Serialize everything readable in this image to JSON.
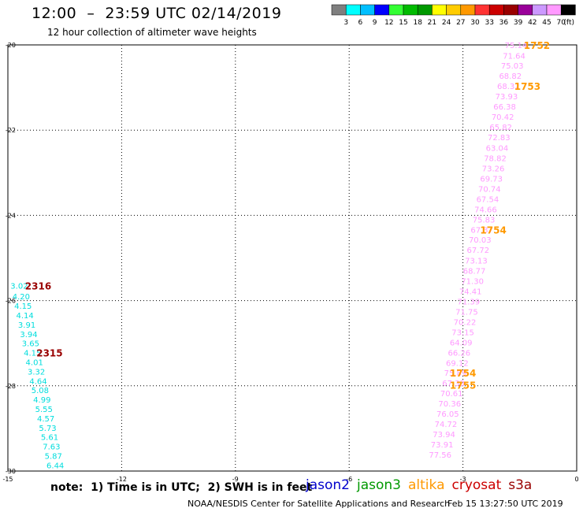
{
  "header": {
    "title": "12:00  –  23:59 UTC 02/14/2019",
    "subtitle": "12 hour collection of altimeter wave heights"
  },
  "color_scale": {
    "colors": [
      "#7f7f7f",
      "#00ffff",
      "#00bfff",
      "#0000ff",
      "#33ff33",
      "#00bb00",
      "#009900",
      "#ffff00",
      "#ffcc00",
      "#ff9900",
      "#ff3333",
      "#cc0000",
      "#990000",
      "#990099",
      "#cc99ff",
      "#ff99ff",
      "#000000"
    ],
    "labels": [
      "3",
      "6",
      "9",
      "12",
      "15",
      "18",
      "21",
      "24",
      "27",
      "30",
      "33",
      "36",
      "39",
      "42",
      "45",
      "70",
      "(ft)"
    ]
  },
  "footer": {
    "note": "note:  1) Time is in UTC;  2) SWH is in feet",
    "credit": "NOAA/NESDIS Center for Satellite Applications and Research",
    "generated": "Feb 15 13:27:50 UTC 2019"
  },
  "satellites": [
    {
      "name": "jason2",
      "color": "#0000cc"
    },
    {
      "name": "jason3",
      "color": "#009900"
    },
    {
      "name": "altika",
      "color": "#ff9900"
    },
    {
      "name": "cryosat",
      "color": "#cc0000"
    },
    {
      "name": "s3a",
      "color": "#990000"
    }
  ],
  "chart_data": {
    "type": "scatter",
    "title": "12:00 – 23:59 UTC 02/14/2019",
    "xlim": [
      -15,
      0
    ],
    "ylim": [
      -30,
      -20
    ],
    "x_ticks": [
      -15,
      -12,
      -9,
      -6,
      -3,
      0
    ],
    "y_ticks": [
      -20,
      -22,
      -24,
      -26,
      -28,
      -30
    ],
    "x_tick_labels": [
      "-15",
      "-12",
      "-9",
      "-6",
      "-3",
      "0"
    ],
    "y_tick_labels": [
      "-20",
      "-22",
      "-24",
      "-26",
      "-28",
      "-30"
    ],
    "grid": true,
    "series": [
      {
        "name": "altika",
        "color": "#ff99ff",
        "points": [
          {
            "x": -1.6,
            "y": -20.0,
            "v": "75.14"
          },
          {
            "x": -1.65,
            "y": -20.25,
            "v": "71.64"
          },
          {
            "x": -1.7,
            "y": -20.48,
            "v": "75.03"
          },
          {
            "x": -1.75,
            "y": -20.72,
            "v": "68.82"
          },
          {
            "x": -1.8,
            "y": -20.96,
            "v": "68.32"
          },
          {
            "x": -1.85,
            "y": -21.2,
            "v": "73.93"
          },
          {
            "x": -1.9,
            "y": -21.44,
            "v": "66.38"
          },
          {
            "x": -1.95,
            "y": -21.68,
            "v": "70.42"
          },
          {
            "x": -2.0,
            "y": -21.92,
            "v": "65.82"
          },
          {
            "x": -2.05,
            "y": -22.16,
            "v": "72.83"
          },
          {
            "x": -2.1,
            "y": -22.41,
            "v": "63.04"
          },
          {
            "x": -2.15,
            "y": -22.65,
            "v": "78.82"
          },
          {
            "x": -2.2,
            "y": -22.89,
            "v": "73.26"
          },
          {
            "x": -2.25,
            "y": -23.13,
            "v": "69.73"
          },
          {
            "x": -2.3,
            "y": -23.37,
            "v": "70.74"
          },
          {
            "x": -2.35,
            "y": -23.61,
            "v": "67.54"
          },
          {
            "x": -2.4,
            "y": -23.85,
            "v": "74.66"
          },
          {
            "x": -2.45,
            "y": -24.09,
            "v": "75.83"
          },
          {
            "x": -2.5,
            "y": -24.33,
            "v": "67.37"
          },
          {
            "x": -2.55,
            "y": -24.57,
            "v": "70.03"
          },
          {
            "x": -2.6,
            "y": -24.81,
            "v": "67.72"
          },
          {
            "x": -2.65,
            "y": -25.06,
            "v": "73.13"
          },
          {
            "x": -2.7,
            "y": -25.3,
            "v": "68.77"
          },
          {
            "x": -2.75,
            "y": -25.54,
            "v": "71.30"
          },
          {
            "x": -2.8,
            "y": -25.78,
            "v": "74.41"
          },
          {
            "x": -2.85,
            "y": -26.02,
            "v": "71.39"
          },
          {
            "x": -2.9,
            "y": -26.26,
            "v": "71.75"
          },
          {
            "x": -2.95,
            "y": -26.5,
            "v": "70.22"
          },
          {
            "x": -3.0,
            "y": -26.74,
            "v": "73.15"
          },
          {
            "x": -3.05,
            "y": -26.98,
            "v": "64.09"
          },
          {
            "x": -3.1,
            "y": -27.22,
            "v": "66.26"
          },
          {
            "x": -3.15,
            "y": -27.46,
            "v": "69.12"
          },
          {
            "x": -3.2,
            "y": -27.69,
            "v": "75.89"
          },
          {
            "x": -3.25,
            "y": -27.93,
            "v": "67.33"
          },
          {
            "x": -3.3,
            "y": -28.17,
            "v": "70.61"
          },
          {
            "x": -3.35,
            "y": -28.41,
            "v": "70.36"
          },
          {
            "x": -3.4,
            "y": -28.65,
            "v": "76.05"
          },
          {
            "x": -3.45,
            "y": -28.89,
            "v": "74.72"
          },
          {
            "x": -3.5,
            "y": -29.13,
            "v": "73.94"
          },
          {
            "x": -3.55,
            "y": -29.37,
            "v": "73.91"
          },
          {
            "x": -3.6,
            "y": -29.61,
            "v": "77.56"
          }
        ]
      },
      {
        "name": "s3a",
        "color": "#00dddd",
        "points": [
          {
            "x": -14.7,
            "y": -25.65,
            "v": "3.02"
          },
          {
            "x": -14.65,
            "y": -25.9,
            "v": "4.20"
          },
          {
            "x": -14.6,
            "y": -26.12,
            "v": "4.15"
          },
          {
            "x": -14.55,
            "y": -26.34,
            "v": "4.14"
          },
          {
            "x": -14.5,
            "y": -26.56,
            "v": "3.91"
          },
          {
            "x": -14.45,
            "y": -26.78,
            "v": "3.94"
          },
          {
            "x": -14.4,
            "y": -27.0,
            "v": "3.65"
          },
          {
            "x": -14.35,
            "y": -27.22,
            "v": "4.15"
          },
          {
            "x": -14.3,
            "y": -27.44,
            "v": "4.01"
          },
          {
            "x": -14.25,
            "y": -27.66,
            "v": "3.32"
          },
          {
            "x": -14.2,
            "y": -27.88,
            "v": "4.64"
          },
          {
            "x": -14.15,
            "y": -28.1,
            "v": "5.08"
          },
          {
            "x": -14.1,
            "y": -28.32,
            "v": "4.99"
          },
          {
            "x": -14.05,
            "y": -28.54,
            "v": "5.55"
          },
          {
            "x": -14.0,
            "y": -28.76,
            "v": "4.57"
          },
          {
            "x": -13.95,
            "y": -28.98,
            "v": "5.73"
          },
          {
            "x": -13.9,
            "y": -29.2,
            "v": "5.61"
          },
          {
            "x": -13.85,
            "y": -29.42,
            "v": "7.63"
          },
          {
            "x": -13.8,
            "y": -29.64,
            "v": "5.87"
          },
          {
            "x": -13.75,
            "y": -29.86,
            "v": "6.44"
          }
        ]
      }
    ],
    "time_labels": [
      {
        "x": -1.05,
        "y": -20.0,
        "text": "1752",
        "color": "#ff9900"
      },
      {
        "x": -1.3,
        "y": -20.96,
        "text": "1753",
        "color": "#ff9900"
      },
      {
        "x": -2.2,
        "y": -24.33,
        "text": "1754",
        "color": "#ff9900"
      },
      {
        "x": -3.0,
        "y": -27.69,
        "text": "1754",
        "color": "#ff9900"
      },
      {
        "x": -3.0,
        "y": -27.98,
        "text": "1755",
        "color": "#ff9900"
      },
      {
        "x": -14.2,
        "y": -25.65,
        "text": "2316",
        "color": "#990000"
      },
      {
        "x": -13.9,
        "y": -27.22,
        "text": "2315",
        "color": "#990000"
      }
    ]
  }
}
